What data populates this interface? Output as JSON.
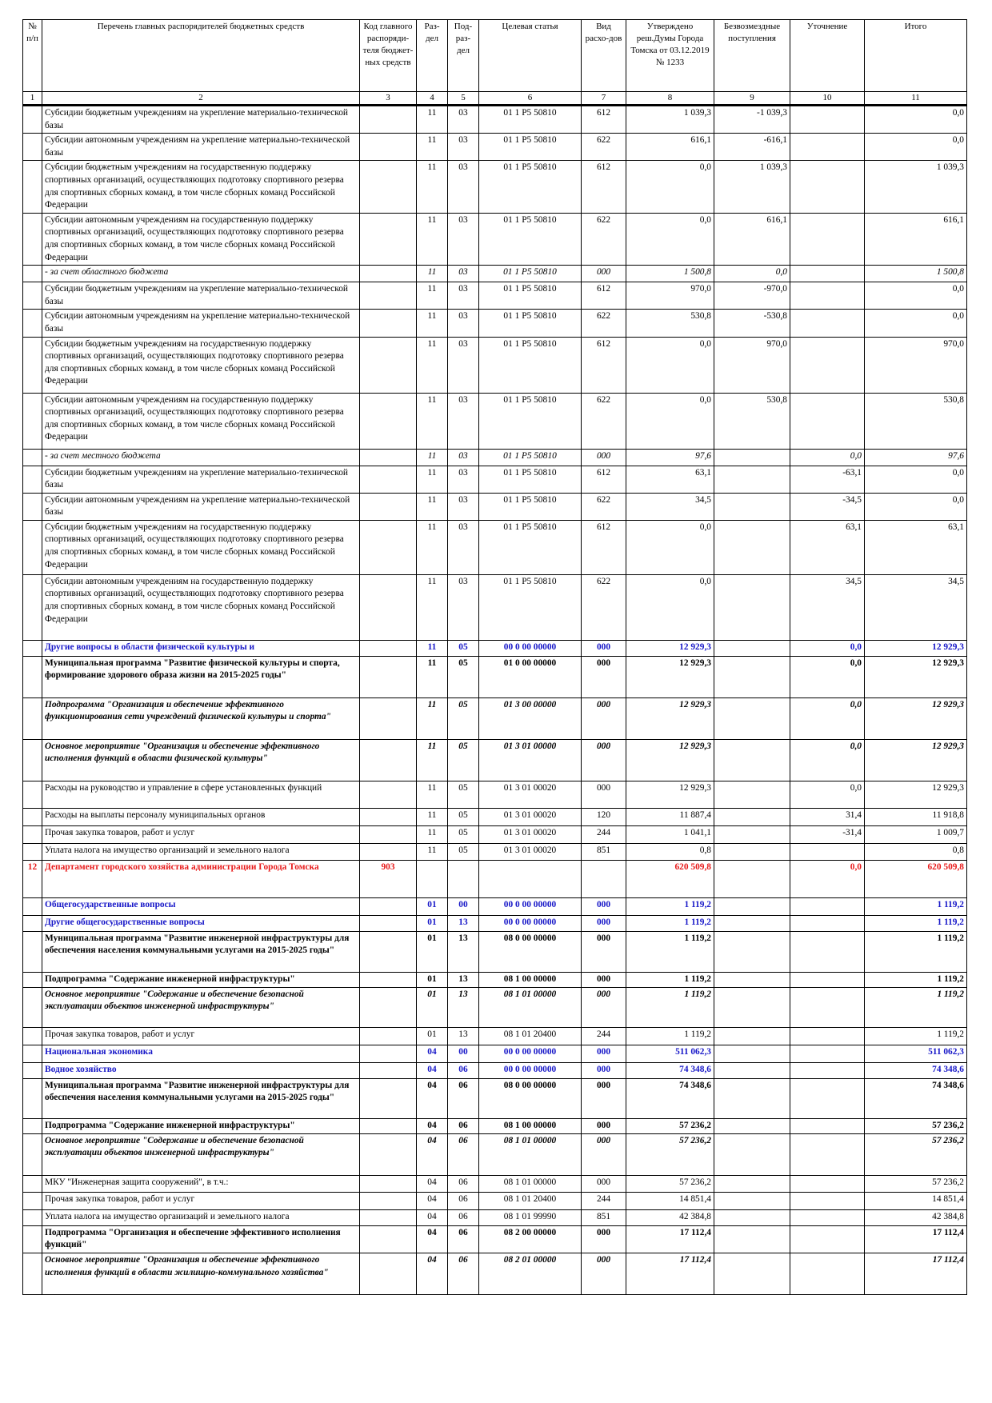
{
  "columns": [
    {
      "num": "1",
      "label": "№ п/п"
    },
    {
      "num": "2",
      "label": "Перечень главных распорядителей бюджетных средств"
    },
    {
      "num": "3",
      "label": "Код главного распоряди-теля бюджет-ных средств"
    },
    {
      "num": "4",
      "label": "Раз-дел"
    },
    {
      "num": "5",
      "label": "Под-раз-дел"
    },
    {
      "num": "6",
      "label": "Целевая статья"
    },
    {
      "num": "7",
      "label": "Вид расхо-дов"
    },
    {
      "num": "8",
      "label": "Утверждено реш.Думы Города Томска от 03.12.2019 № 1233"
    },
    {
      "num": "9",
      "label": "Безвозмездные поступления"
    },
    {
      "num": "10",
      "label": "Уточнение"
    },
    {
      "num": "11",
      "label": "Итого"
    }
  ],
  "rows": [
    {
      "s": "ind",
      "h": 31,
      "no": "",
      "name": "Субсидии бюджетным учреждениям на укрепление материально-технической базы",
      "code": "",
      "razdel": "11",
      "podrazdel": "03",
      "cs": "01 1 P5 50810",
      "vr": "612",
      "approved": "1 039,3",
      "grants": "-1 039,3",
      "clar": "",
      "total": "0,0"
    },
    {
      "s": "ind",
      "h": 31,
      "no": "",
      "name": "Субсидии автономным учреждениям на укрепление материально-технической базы",
      "code": "",
      "razdel": "11",
      "podrazdel": "03",
      "cs": "01 1 P5 50810",
      "vr": "622",
      "approved": "616,1",
      "grants": "-616,1",
      "clar": "",
      "total": "0,0"
    },
    {
      "s": "",
      "h": 62,
      "no": "",
      "name": "Субсидии бюджетным учреждениям на государственную поддержку спортивных организаций, осуществляющих подготовку спортивного резерва для спортивных сборных команд, в том числе сборных команд Российской Федерации",
      "code": "",
      "razdel": "11",
      "podrazdel": "03",
      "cs": "01 1 P5 50810",
      "vr": "612",
      "approved": "0,0",
      "grants": "1 039,3",
      "clar": "",
      "total": "1 039,3"
    },
    {
      "s": "",
      "h": 62,
      "no": "",
      "name": "Субсидии автономным учреждениям на государственную поддержку спортивных организаций, осуществляющих подготовку спортивного резерва для спортивных сборных команд, в том числе сборных команд Российской Федерации",
      "code": "",
      "razdel": "11",
      "podrazdel": "03",
      "cs": "01 1 P5 50810",
      "vr": "622",
      "approved": "0,0",
      "grants": "616,1",
      "clar": "",
      "total": "616,1"
    },
    {
      "s": "src",
      "h": 21,
      "no": "",
      "name": " - за счет областного бюджета",
      "code": "",
      "razdel": "11",
      "podrazdel": "03",
      "cs": "01 1 P5 50810",
      "vr": "000",
      "approved": "1 500,8",
      "grants": "0,0",
      "clar": "",
      "total": "1 500,8"
    },
    {
      "s": "ind",
      "h": 31,
      "no": "",
      "name": "Субсидии бюджетным учреждениям на укрепление материально-технической базы",
      "code": "",
      "razdel": "11",
      "podrazdel": "03",
      "cs": "01 1 P5 50810",
      "vr": "612",
      "approved": "970,0",
      "grants": "-970,0",
      "clar": "",
      "total": "0,0"
    },
    {
      "s": "ind",
      "h": 31,
      "no": "",
      "name": "Субсидии автономным учреждениям на укрепление материально-технической базы",
      "code": "",
      "razdel": "11",
      "podrazdel": "03",
      "cs": "01 1 P5 50810",
      "vr": "622",
      "approved": "530,8",
      "grants": "-530,8",
      "clar": "",
      "total": "0,0"
    },
    {
      "s": "",
      "h": 70,
      "no": "",
      "name": "Субсидии бюджетным учреждениям на государственную поддержку спортивных организаций, осуществляющих подготовку спортивного резерва для спортивных сборных команд, в том числе сборных команд Российской Федерации",
      "code": "",
      "razdel": "11",
      "podrazdel": "03",
      "cs": "01 1 P5 50810",
      "vr": "612",
      "approved": "0,0",
      "grants": "970,0",
      "clar": "",
      "total": "970,0"
    },
    {
      "s": "",
      "h": 70,
      "no": "",
      "name": "Субсидии автономным учреждениям на государственную поддержку спортивных организаций, осуществляющих подготовку спортивного резерва для спортивных сборных команд, в том числе сборных команд Российской Федерации",
      "code": "",
      "razdel": "11",
      "podrazdel": "03",
      "cs": "01 1 P5 50810",
      "vr": "622",
      "approved": "0,0",
      "grants": "530,8",
      "clar": "",
      "total": "530,8"
    },
    {
      "s": "src",
      "h": 21,
      "no": "",
      "name": " - за счет местного бюджета",
      "code": "",
      "razdel": "11",
      "podrazdel": "03",
      "cs": "01 1 P5 50810",
      "vr": "000",
      "approved": "97,6",
      "grants": "",
      "clar": "0,0",
      "total": "97,6"
    },
    {
      "s": "ind",
      "h": 31,
      "no": "",
      "name": "Субсидии бюджетным учреждениям на укрепление материально-технической базы",
      "code": "",
      "razdel": "11",
      "podrazdel": "03",
      "cs": "01 1 P5 50810",
      "vr": "612",
      "approved": "63,1",
      "grants": "",
      "clar": "-63,1",
      "total": "0,0"
    },
    {
      "s": "ind",
      "h": 31,
      "no": "",
      "name": "Субсидии автономным учреждениям на укрепление материально-технической базы",
      "code": "",
      "razdel": "11",
      "podrazdel": "03",
      "cs": "01 1 P5 50810",
      "vr": "622",
      "approved": "34,5",
      "grants": "",
      "clar": "-34,5",
      "total": "0,0"
    },
    {
      "s": "",
      "h": 68,
      "no": "",
      "name": "Субсидии бюджетным учреждениям на государственную поддержку спортивных организаций, осуществляющих подготовку спортивного резерва для спортивных сборных команд, в том числе сборных команд Российской Федерации",
      "code": "",
      "razdel": "11",
      "podrazdel": "03",
      "cs": "01 1 P5 50810",
      "vr": "612",
      "approved": "0,0",
      "grants": "",
      "clar": "63,1",
      "total": "63,1"
    },
    {
      "s": "",
      "h": 82,
      "no": "",
      "name": "Субсидии автономным учреждениям на государственную поддержку спортивных организаций, осуществляющих подготовку спортивного резерва для спортивных сборных команд, в том числе сборных команд Российской Федерации",
      "code": "",
      "razdel": "11",
      "podrazdel": "03",
      "cs": "01 1 P5 50810",
      "vr": "622",
      "approved": "0,0",
      "grants": "",
      "clar": "34,5",
      "total": "34,5"
    },
    {
      "s": "blue",
      "h": 20,
      "no": "",
      "name": "Другие вопросы в области физической культуры и",
      "code": "",
      "razdel": "11",
      "podrazdel": "05",
      "cs": "00 0 00 00000",
      "vr": "000",
      "approved": "12 929,3",
      "grants": "",
      "clar": "0,0",
      "total": "12 929,3"
    },
    {
      "s": "b",
      "h": 52,
      "no": "",
      "name": "Муниципальная программа \"Развитие физической культуры и спорта, формирование здорового образа жизни на 2015-2025 годы\"",
      "code": "",
      "razdel": "11",
      "podrazdel": "05",
      "cs": "01 0 00 00000",
      "vr": "000",
      "approved": "12 929,3",
      "grants": "",
      "clar": "0,0",
      "total": "12 929,3"
    },
    {
      "s": "bi",
      "h": 52,
      "no": "",
      "name": "Подпрограмма \"Организация и обеспечение эффективного функционирования сети учреждений физической культуры и спорта\"",
      "code": "",
      "razdel": "11",
      "podrazdel": "05",
      "cs": "01 3 00 00000",
      "vr": "000",
      "approved": "12 929,3",
      "grants": "",
      "clar": "0,0",
      "total": "12 929,3"
    },
    {
      "s": "bi",
      "h": 52,
      "no": "",
      "name": " Основное мероприятие \"Организация и обеспечение эффективного исполнения функций в области физической культуры\"",
      "code": "",
      "razdel": "11",
      "podrazdel": "05",
      "cs": "01 3 01 00000",
      "vr": "000",
      "approved": "12 929,3",
      "grants": "",
      "clar": "0,0",
      "total": "12 929,3"
    },
    {
      "s": "",
      "h": 34,
      "no": "",
      "name": " Расходы на руководство и управление в сфере установленных функций",
      "code": "",
      "razdel": "11",
      "podrazdel": "05",
      "cs": "01 3 01 00020",
      "vr": "000",
      "approved": "12 929,3",
      "grants": "",
      "clar": "0,0",
      "total": "12 929,3"
    },
    {
      "s": "ind",
      "h": 22,
      "no": "",
      "name": "Расходы на выплаты персоналу муниципальных органов",
      "code": "",
      "razdel": "11",
      "podrazdel": "05",
      "cs": "01 3 01 00020",
      "vr": "120",
      "approved": "11 887,4",
      "grants": "",
      "clar": "31,4",
      "total": "11 918,8"
    },
    {
      "s": "ind",
      "h": 22,
      "no": "",
      "name": "Прочая закупка товаров, работ и услуг",
      "code": "",
      "razdel": "11",
      "podrazdel": "05",
      "cs": "01 3 01 00020",
      "vr": "244",
      "approved": "1 041,1",
      "grants": "",
      "clar": "-31,4",
      "total": "1 009,7"
    },
    {
      "s": "ind",
      "h": 21,
      "no": "",
      "name": "Уплата налога на имущество организаций и земельного налога",
      "code": "",
      "razdel": "11",
      "podrazdel": "05",
      "cs": "01 3 01 00020",
      "vr": "851",
      "approved": "0,8",
      "grants": "",
      "clar": "",
      "total": "0,8"
    },
    {
      "s": "red",
      "h": 47,
      "no": "12",
      "name": "Департамент городского хозяйства администрации Города Томска",
      "code": "903",
      "razdel": "",
      "podrazdel": "",
      "cs": "",
      "vr": "",
      "approved": "620 509,8",
      "grants": "",
      "clar": "0,0",
      "total": "620 509,8"
    },
    {
      "s": "bluebig",
      "h": 22,
      "no": "",
      "name": "Общегосударственные вопросы",
      "code": "",
      "razdel": "01",
      "podrazdel": "00",
      "cs": "00 0 00 00000",
      "vr": "000",
      "approved": "1 119,2",
      "grants": "",
      "clar": "",
      "total": "1 119,2"
    },
    {
      "s": "blue",
      "h": 20,
      "no": "",
      "name": "Другие общегосударственные вопросы",
      "code": "",
      "razdel": "01",
      "podrazdel": "13",
      "cs": "00 0 00 00000",
      "vr": "000",
      "approved": "1 119,2",
      "grants": "",
      "clar": "",
      "total": "1 119,2"
    },
    {
      "s": "b",
      "h": 51,
      "no": "",
      "name": "Муниципальная программа \"Развитие инженерной инфраструктуры для обеспечения населения коммунальными услугами на 2015-2025 годы\"",
      "code": "",
      "razdel": "01",
      "podrazdel": "13",
      "cs": "08 0 00 00000",
      "vr": "000",
      "approved": "1 119,2",
      "grants": "",
      "clar": "",
      "total": "1 119,2"
    },
    {
      "s": "b",
      "h": 19,
      "no": "",
      "name": "Подпрограмма \"Содержание инженерной инфраструктуры\"",
      "code": "",
      "razdel": "01",
      "podrazdel": "13",
      "cs": "08 1 00 00000",
      "vr": "000",
      "approved": "1 119,2",
      "grants": "",
      "clar": "",
      "total": "1 119,2"
    },
    {
      "s": "bi",
      "h": 50,
      "no": "",
      "name": " Основное мероприятие \"Содержание и обеспечение безопасной эксплуатации объектов инженерной инфраструктуры\"",
      "code": "",
      "razdel": "01",
      "podrazdel": "13",
      "cs": "08 1 01 00000",
      "vr": "000",
      "approved": "1 119,2",
      "grants": "",
      "clar": "",
      "total": "1 119,2"
    },
    {
      "s": "ind",
      "h": 22,
      "no": "",
      "name": "Прочая закупка товаров, работ и услуг",
      "code": "",
      "razdel": "01",
      "podrazdel": "13",
      "cs": "08 1 01 20400",
      "vr": "244",
      "approved": "1 119,2",
      "grants": "",
      "clar": "",
      "total": "1 119,2"
    },
    {
      "s": "bluebig",
      "h": 22,
      "no": "",
      "name": "Национальная экономика",
      "code": "",
      "razdel": "04",
      "podrazdel": "00",
      "cs": "00 0 00 00000",
      "vr": "000",
      "approved": "511 062,3",
      "grants": "",
      "clar": "",
      "total": "511 062,3"
    },
    {
      "s": "blue",
      "h": 20,
      "no": "",
      "name": "Водное хозяйство",
      "code": "",
      "razdel": "04",
      "podrazdel": "06",
      "cs": "00 0 00 00000",
      "vr": "000",
      "approved": "74 348,6",
      "grants": "",
      "clar": "",
      "total": "74 348,6"
    },
    {
      "s": "b",
      "h": 50,
      "no": "",
      "name": "Муниципальная программа \"Развитие инженерной инфраструктуры для обеспечения населения коммунальными услугами на 2015-2025 годы\"",
      "code": "",
      "razdel": "04",
      "podrazdel": "06",
      "cs": "08 0 00 00000",
      "vr": "000",
      "approved": "74 348,6",
      "grants": "",
      "clar": "",
      "total": "74 348,6"
    },
    {
      "s": "b",
      "h": 19,
      "no": "",
      "name": "Подпрограмма \"Содержание инженерной инфраструктуры\"",
      "code": "",
      "razdel": "04",
      "podrazdel": "06",
      "cs": "08 1 00 00000",
      "vr": "000",
      "approved": "57 236,2",
      "grants": "",
      "clar": "",
      "total": "57 236,2"
    },
    {
      "s": "bi",
      "h": 52,
      "no": "",
      "name": " Основное мероприятие \"Содержание и обеспечение безопасной эксплуатации объектов инженерной инфраструктуры\"",
      "code": "",
      "razdel": "04",
      "podrazdel": "06",
      "cs": "08 1 01 00000",
      "vr": "000",
      "approved": "57 236,2",
      "grants": "",
      "clar": "",
      "total": "57 236,2"
    },
    {
      "s": "",
      "h": 21,
      "no": "",
      "name": "МКУ \"Инженерная защита сооружений\", в т.ч.:",
      "code": "",
      "razdel": "04",
      "podrazdel": "06",
      "cs": "08 1 01 00000",
      "vr": "000",
      "approved": "57 236,2",
      "grants": "",
      "clar": "",
      "total": "57 236,2"
    },
    {
      "s": "ind",
      "h": 22,
      "no": "",
      "name": "Прочая закупка товаров, работ и услуг",
      "code": "",
      "razdel": "04",
      "podrazdel": "06",
      "cs": "08 1 01 20400",
      "vr": "244",
      "approved": "14 851,4",
      "grants": "",
      "clar": "",
      "total": "14 851,4"
    },
    {
      "s": "ind",
      "h": 20,
      "no": "",
      "name": "Уплата налога на имущество организаций и земельного налога",
      "code": "",
      "razdel": "04",
      "podrazdel": "06",
      "cs": "08 1 01 99990",
      "vr": "851",
      "approved": "42 384,8",
      "grants": "",
      "clar": "",
      "total": "42 384,8"
    },
    {
      "s": "b",
      "h": 33,
      "no": "",
      "name": "Подпрограмма \"Организация и обеспечение эффективного исполнения функций\"",
      "code": "",
      "razdel": "04",
      "podrazdel": "06",
      "cs": "08 2 00 00000",
      "vr": "000",
      "approved": "17 112,4",
      "grants": "",
      "clar": "",
      "total": "17 112,4"
    },
    {
      "s": "bi",
      "h": 52,
      "no": "",
      "name": " Основное мероприятие \"Организация и обеспечение эффективного исполнения функций в области жилищно-коммунального хозяйства\"",
      "code": "",
      "razdel": "04",
      "podrazdel": "06",
      "cs": "08 2 01 00000",
      "vr": "000",
      "approved": "17 112,4",
      "grants": "",
      "clar": "",
      "total": "17 112,4"
    }
  ]
}
